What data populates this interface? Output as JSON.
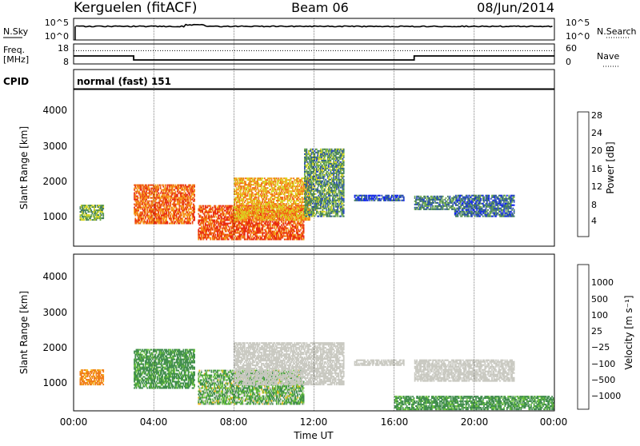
{
  "header": {
    "title": "Kerguelen (fitACF)",
    "beam": "Beam 06",
    "date": "08/Jun/2014"
  },
  "noise_panel": {
    "left_label": "N.Sky",
    "right_label": "N.Search",
    "left_ticks": [
      "10^5",
      "10^0"
    ],
    "right_ticks": [
      "10^5",
      "10^0"
    ]
  },
  "freq_panel": {
    "left_label_line1": "Freq.",
    "left_label_line2": "[MHz]",
    "right_label": "Nave",
    "left_ticks": [
      "18",
      "8"
    ],
    "right_ticks": [
      "60",
      "0"
    ]
  },
  "cpid": {
    "label": "CPID",
    "value": "normal (fast) 151"
  },
  "power_panel": {
    "ylabel": "Slant Range [km]",
    "yticks": [
      "1000",
      "2000",
      "3000",
      "4000"
    ],
    "colorbar_label": "Power [dB]",
    "colorbar_ticks": [
      "4",
      "8",
      "12",
      "16",
      "20",
      "24",
      "28"
    ],
    "colors": [
      "#0a1cf5",
      "#2346b8",
      "#3f7a5c",
      "#6aa84a",
      "#d7d61f",
      "#f5a01a",
      "#f06a14",
      "#e82a10"
    ]
  },
  "velocity_panel": {
    "ylabel": "Slant Range [km]",
    "yticks": [
      "1000",
      "2000",
      "3000",
      "4000"
    ],
    "colorbar_label": "Velocity [m s⁻¹]",
    "colorbar_ticks": [
      "1000",
      "500",
      "100",
      "25",
      "−25",
      "−100",
      "−500",
      "−1000"
    ],
    "colors": [
      "#2233c8",
      "#3f6e9a",
      "#3e8c4a",
      "#69c23a",
      "#c9c9c2",
      "#f5b81a",
      "#f07a14",
      "#e83a14",
      "#e81010"
    ],
    "ground_scatter_color": "#c8c8c0"
  },
  "xaxis": {
    "label": "Time UT",
    "ticks": [
      "00:00",
      "04:00",
      "08:00",
      "12:00",
      "16:00",
      "20:00",
      "00:00"
    ]
  },
  "chart_data": {
    "type": "heatmap",
    "title": "Kerguelen (fitACF)",
    "subtitle": "Beam 06",
    "date": "08/Jun/2014",
    "xlabel": "Time UT",
    "xlim": [
      0,
      24
    ],
    "ylabel": "Slant Range [km]",
    "ylim": [
      180,
      4600
    ],
    "freq_steps_mhz": [
      {
        "start": 0,
        "end": 3,
        "value": 12
      },
      {
        "start": 3,
        "end": 17,
        "value": 10
      },
      {
        "start": 17,
        "end": 24,
        "value": 12
      }
    ],
    "nave_level": 40,
    "power_range_db": [
      0,
      32
    ],
    "velocity_range_ms": [
      -1000,
      1000
    ],
    "power_echo_regions": [
      {
        "t_start": 0.3,
        "t_end": 1.5,
        "r_min": 900,
        "r_max": 1350,
        "power_db": 14
      },
      {
        "t_start": 3.0,
        "t_end": 6.0,
        "r_min": 800,
        "r_max": 1900,
        "power_db": 26
      },
      {
        "t_start": 6.2,
        "t_end": 11.5,
        "r_min": 350,
        "r_max": 1300,
        "power_db": 28
      },
      {
        "t_start": 8.0,
        "t_end": 11.8,
        "r_min": 900,
        "r_max": 2100,
        "power_db": 22
      },
      {
        "t_start": 11.5,
        "t_end": 13.5,
        "r_min": 1000,
        "r_max": 2900,
        "power_db": 12
      },
      {
        "t_start": 14.0,
        "t_end": 16.5,
        "r_min": 1450,
        "r_max": 1600,
        "power_db": 6
      },
      {
        "t_start": 17.0,
        "t_end": 19.0,
        "r_min": 1200,
        "r_max": 1600,
        "power_db": 10
      },
      {
        "t_start": 19.0,
        "t_end": 22.0,
        "r_min": 1000,
        "r_max": 1600,
        "power_db": 8
      }
    ],
    "velocity_echo_regions": [
      {
        "t_start": 0.3,
        "t_end": 1.5,
        "r_min": 900,
        "r_max": 1350,
        "velocity_ms": -100,
        "ground_scatter": false
      },
      {
        "t_start": 3.0,
        "t_end": 6.0,
        "r_min": 800,
        "r_max": 1900,
        "velocity_ms": 100,
        "ground_scatter": false
      },
      {
        "t_start": 6.2,
        "t_end": 11.5,
        "r_min": 350,
        "r_max": 1300,
        "velocity_ms": 50,
        "ground_scatter": false
      },
      {
        "t_start": 8.0,
        "t_end": 13.5,
        "r_min": 900,
        "r_max": 2100,
        "velocity_ms": 0,
        "ground_scatter": true
      },
      {
        "t_start": 14.0,
        "t_end": 16.5,
        "r_min": 1450,
        "r_max": 1600,
        "velocity_ms": 0,
        "ground_scatter": true
      },
      {
        "t_start": 17.0,
        "t_end": 22.0,
        "r_min": 1000,
        "r_max": 1600,
        "velocity_ms": 0,
        "ground_scatter": true
      },
      {
        "t_start": 16.0,
        "t_end": 24.0,
        "r_min": 200,
        "r_max": 600,
        "velocity_ms": 100,
        "ground_scatter": false
      }
    ]
  }
}
